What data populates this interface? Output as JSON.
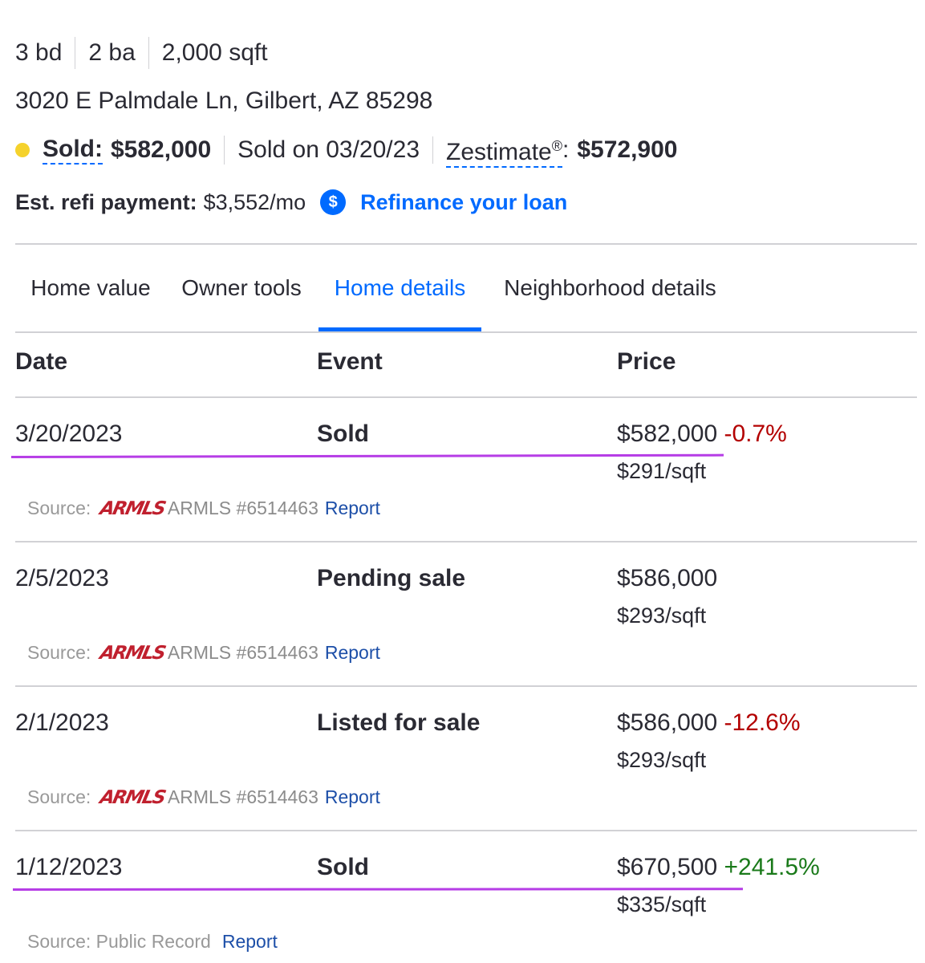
{
  "facts": {
    "beds": "3 bd",
    "baths": "2 ba",
    "sqft": "2,000 sqft"
  },
  "address": "3020 E Palmdale Ln, Gilbert, AZ 85298",
  "status": {
    "sold_label": "Sold:",
    "sold_price": "$582,000",
    "sold_on": "Sold on 03/20/23",
    "zestimate_label": "Zestimate",
    "zestimate_mark": "®",
    "zestimate_colon": ":",
    "zestimate_value": "$572,900",
    "dot_color": "#f5d22c"
  },
  "refi": {
    "label": "Est. refi payment:",
    "value": "$3,552/mo",
    "icon": "dollar-icon",
    "icon_glyph": "$",
    "link": "Refinance your loan"
  },
  "tabs": [
    {
      "label": "Home value",
      "active": false
    },
    {
      "label": "Owner tools",
      "active": false
    },
    {
      "label": "Home details",
      "active": true
    },
    {
      "label": "Neighborhood details",
      "active": false
    }
  ],
  "table": {
    "headers": {
      "date": "Date",
      "event": "Event",
      "price": "Price"
    },
    "rows": [
      {
        "date": "3/20/2023",
        "event": "Sold",
        "price": "$582,000",
        "change": "-0.7%",
        "per_sqft": "$291/sqft",
        "source_label": "Source:",
        "source_logo": "ARMLS",
        "source_id": "ARMLS #6514463",
        "report": "Report"
      },
      {
        "date": "2/5/2023",
        "event": "Pending sale",
        "price": "$586,000",
        "change": "",
        "per_sqft": "$293/sqft",
        "source_label": "Source:",
        "source_logo": "ARMLS",
        "source_id": "ARMLS #6514463",
        "report": "Report"
      },
      {
        "date": "2/1/2023",
        "event": "Listed for sale",
        "price": "$586,000",
        "change": "-12.6%",
        "per_sqft": "$293/sqft",
        "source_label": "Source:",
        "source_logo": "ARMLS",
        "source_id": "ARMLS #6514463",
        "report": "Report"
      },
      {
        "date": "1/12/2023",
        "event": "Sold",
        "price": "$670,500",
        "change": "+241.5%",
        "per_sqft": "$335/sqft",
        "source_label": "Source: Public Record",
        "source_logo": "",
        "source_id": "",
        "report": "Report"
      }
    ]
  },
  "colors": {
    "accent": "#006aff",
    "negative": "#b30000",
    "positive": "#1a7a1a",
    "annotation": "#b63de6",
    "logo": "#c0202e"
  }
}
